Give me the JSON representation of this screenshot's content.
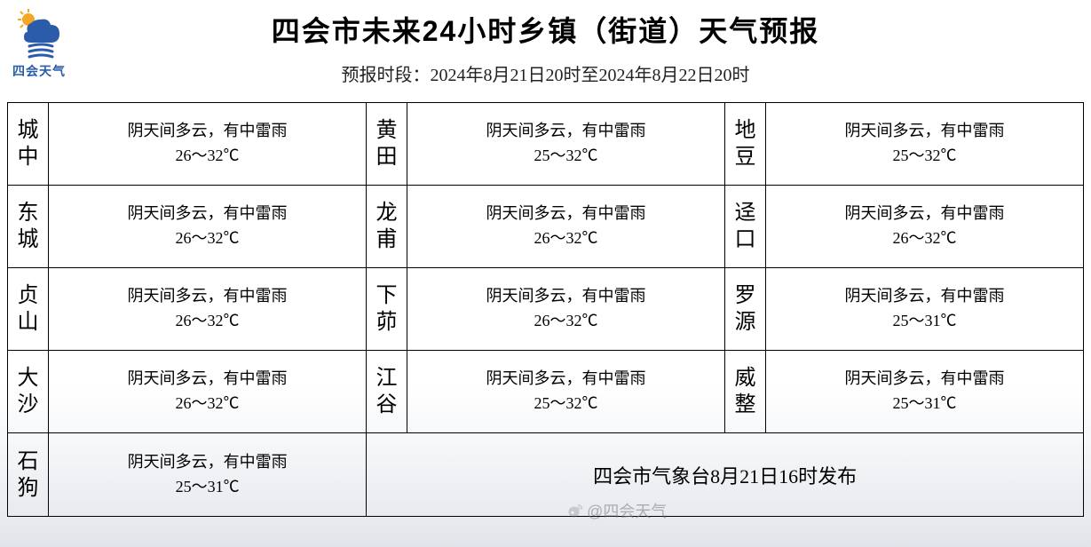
{
  "logo_text": "四会天气",
  "title": "四会市未来24小时乡镇（街道）天气预报",
  "subtitle": "预报时段：2024年8月21日20时至2024年8月22日20时",
  "footer": "四会市气象台8月21日16时发布",
  "watermark": "@四会天气",
  "colors": {
    "text": "#000000",
    "border": "#000000",
    "logo_blue": "#2a5caa",
    "logo_orange": "#f5a623",
    "background": "#ffffff"
  },
  "rows": [
    [
      {
        "town": "城中",
        "desc": "阴天间多云，有中雷雨",
        "temp": "26～32℃"
      },
      {
        "town": "黄田",
        "desc": "阴天间多云，有中雷雨",
        "temp": "25～32℃"
      },
      {
        "town": "地豆",
        "desc": "阴天间多云，有中雷雨",
        "temp": "25～32℃"
      }
    ],
    [
      {
        "town": "东城",
        "desc": "阴天间多云，有中雷雨",
        "temp": "26～32℃"
      },
      {
        "town": "龙甫",
        "desc": "阴天间多云，有中雷雨",
        "temp": "26～32℃"
      },
      {
        "town": "迳口",
        "desc": "阴天间多云，有中雷雨",
        "temp": "26～32℃"
      }
    ],
    [
      {
        "town": "贞山",
        "desc": "阴天间多云，有中雷雨",
        "temp": "26～32℃"
      },
      {
        "town": "下茆",
        "desc": "阴天间多云，有中雷雨",
        "temp": "26～32℃"
      },
      {
        "town": "罗源",
        "desc": "阴天间多云，有中雷雨",
        "temp": "25～31℃"
      }
    ],
    [
      {
        "town": "大沙",
        "desc": "阴天间多云，有中雷雨",
        "temp": "26～32℃"
      },
      {
        "town": "江谷",
        "desc": "阴天间多云，有中雷雨",
        "temp": "25～32℃"
      },
      {
        "town": "威整",
        "desc": "阴天间多云，有中雷雨",
        "temp": "25～31℃"
      }
    ],
    [
      {
        "town": "石狗",
        "desc": "阴天间多云，有中雷雨",
        "temp": "25～31℃"
      }
    ]
  ]
}
